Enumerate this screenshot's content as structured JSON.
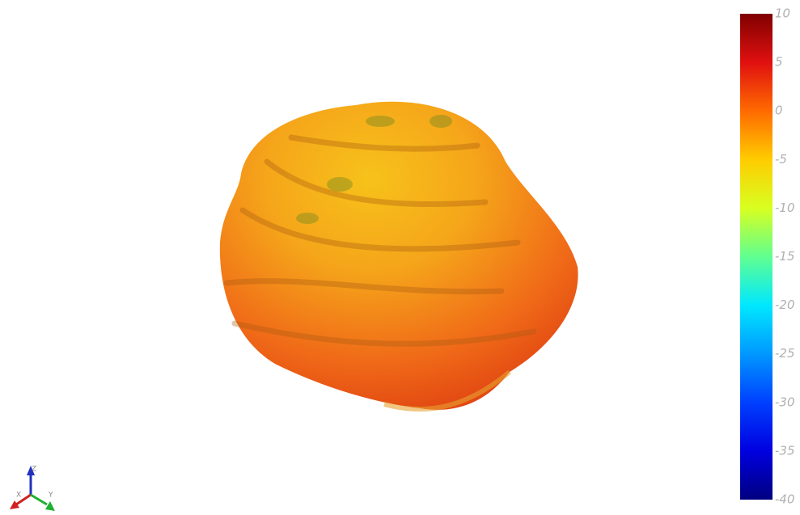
{
  "colorbar": {
    "range": [
      -40,
      10
    ],
    "ticks": [
      10,
      5,
      0,
      -5,
      -10,
      -15,
      -20,
      -25,
      -30,
      -35,
      -40
    ]
  },
  "axes_triad": {
    "labels": [
      "X",
      "Y",
      "Z"
    ]
  }
}
